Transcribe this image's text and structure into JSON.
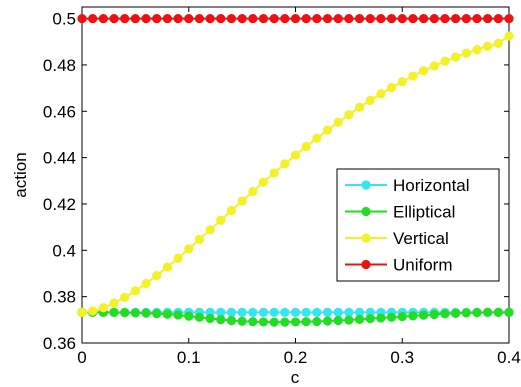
{
  "chart_data": {
    "type": "line",
    "xlabel": "c",
    "ylabel": "action",
    "xlim": [
      0,
      0.4
    ],
    "ylim": [
      0.36,
      0.505
    ],
    "xticks": [
      "0",
      "0.1",
      "0.2",
      "0.3",
      "0.4"
    ],
    "yticks": [
      "0.36",
      "0.38",
      "0.4",
      "0.42",
      "0.44",
      "0.46",
      "0.48",
      "0.5"
    ],
    "grid": false,
    "legend_position": "bottom-right",
    "x": [
      0,
      0.01,
      0.02,
      0.03,
      0.04,
      0.05,
      0.06,
      0.07,
      0.08,
      0.09,
      0.1,
      0.11,
      0.12,
      0.13,
      0.14,
      0.15,
      0.16,
      0.17,
      0.18,
      0.19,
      0.2,
      0.21,
      0.22,
      0.23,
      0.24,
      0.25,
      0.26,
      0.27,
      0.28,
      0.29,
      0.3,
      0.31,
      0.32,
      0.33,
      0.34,
      0.35,
      0.36,
      0.37,
      0.38,
      0.39,
      0.4
    ],
    "series": [
      {
        "name": "Horizontal",
        "color": "#33e6f2",
        "values": [
          0.3732,
          0.3732,
          0.3732,
          0.3732,
          0.3732,
          0.3732,
          0.3732,
          0.3732,
          0.3732,
          0.3732,
          0.3732,
          0.3732,
          0.3732,
          0.3732,
          0.3732,
          0.3732,
          0.3732,
          0.3732,
          0.3732,
          0.3732,
          0.3732,
          0.3732,
          0.3732,
          0.3732,
          0.3732,
          0.3732,
          0.3732,
          0.3732,
          0.3732,
          0.3732,
          0.3732,
          0.3732,
          0.3732,
          0.3732,
          0.3732,
          0.3732,
          0.3732,
          0.3732,
          0.3732,
          0.3732,
          0.3732
        ]
      },
      {
        "name": "Elliptical",
        "color": "#22dd22",
        "values": [
          0.3732,
          0.3732,
          0.3732,
          0.3732,
          0.3731,
          0.373,
          0.3729,
          0.3727,
          0.3724,
          0.3721,
          0.3716,
          0.3711,
          0.3706,
          0.3701,
          0.3697,
          0.3694,
          0.3692,
          0.3691,
          0.369,
          0.369,
          0.3691,
          0.3692,
          0.3693,
          0.3695,
          0.3697,
          0.3699,
          0.3702,
          0.3705,
          0.3708,
          0.3711,
          0.3714,
          0.3717,
          0.372,
          0.3723,
          0.3726,
          0.3728,
          0.373,
          0.3731,
          0.3732,
          0.3732,
          0.3732
        ]
      },
      {
        "name": "Vertical",
        "color": "#f2f226",
        "values": [
          0.3732,
          0.3738,
          0.3752,
          0.3772,
          0.3797,
          0.3825,
          0.3857,
          0.3891,
          0.3928,
          0.3966,
          0.4006,
          0.4047,
          0.4088,
          0.413,
          0.4172,
          0.4213,
          0.4254,
          0.4294,
          0.4334,
          0.4373,
          0.4411,
          0.4448,
          0.4484,
          0.4519,
          0.4553,
          0.4585,
          0.4617,
          0.4647,
          0.4675,
          0.4702,
          0.4728,
          0.4752,
          0.4775,
          0.4796,
          0.4816,
          0.4834,
          0.4851,
          0.4866,
          0.488,
          0.4893,
          0.4925
        ]
      },
      {
        "name": "Uniform",
        "color": "#ee1111",
        "values": [
          0.5,
          0.5,
          0.5,
          0.5,
          0.5,
          0.5,
          0.5,
          0.5,
          0.5,
          0.5,
          0.5,
          0.5,
          0.5,
          0.5,
          0.5,
          0.5,
          0.5,
          0.5,
          0.5,
          0.5,
          0.5,
          0.5,
          0.5,
          0.5,
          0.5,
          0.5,
          0.5,
          0.5,
          0.5,
          0.5,
          0.5,
          0.5,
          0.5,
          0.5,
          0.5,
          0.5,
          0.5,
          0.5,
          0.5,
          0.5,
          0.5
        ]
      }
    ]
  }
}
